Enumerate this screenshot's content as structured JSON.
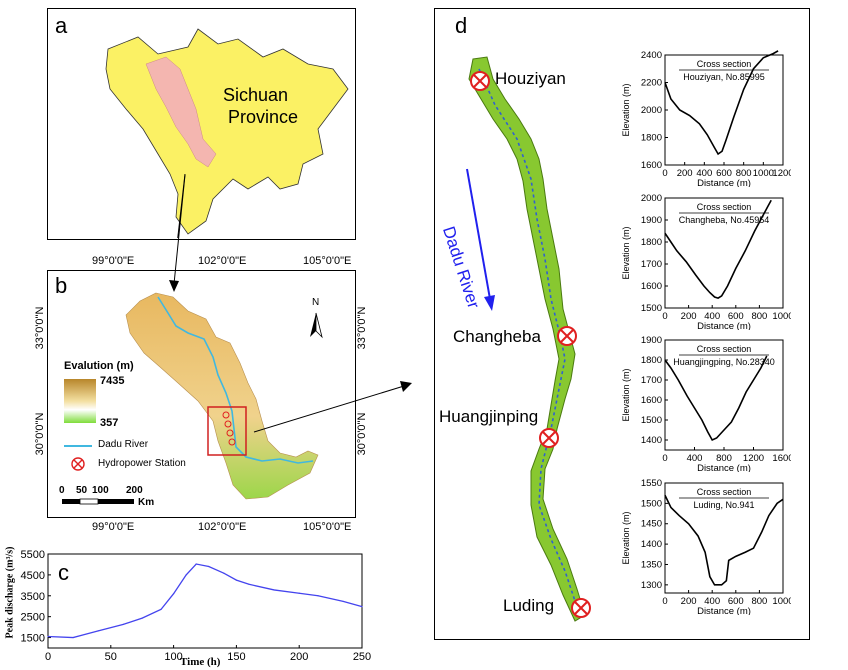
{
  "panel_a": {
    "label": "a",
    "region_name_line1": "Sichuan",
    "region_name_line2": "Province"
  },
  "panel_b": {
    "label": "b",
    "lon_ticks": [
      "99°0'0\"E",
      "102°0'0\"E",
      "105°0'0\"E"
    ],
    "lat_ticks": [
      "33°0'0\"N",
      "30°0'0\"N"
    ],
    "north_label": "N",
    "legend": {
      "title": "Evalution (m)",
      "max": "7435",
      "min": "357",
      "river": "Dadu River",
      "station": "Hydropower Station"
    },
    "scale": {
      "ticks": [
        "0",
        "50",
        "100",
        "200"
      ],
      "unit": "Km"
    },
    "colors": {
      "elev_high": "#b8862a",
      "elev_mid": "#f3dfa0",
      "elev_low": "#7fdc3a",
      "river": "#40b8e0",
      "station": "#e02020"
    }
  },
  "panel_c": {
    "label": "c",
    "chart_data": {
      "type": "line",
      "xlabel": "Time (h)",
      "ylabel": "Peak discharge (m³/s)",
      "xlim": [
        0,
        250
      ],
      "ylim": [
        1000,
        5500
      ],
      "x_ticks": [
        "0",
        "50",
        "100",
        "150",
        "200",
        "250"
      ],
      "y_ticks": [
        "1500",
        "2500",
        "3500",
        "4500",
        "5500"
      ],
      "x": [
        0,
        20,
        40,
        60,
        75,
        90,
        100,
        110,
        118,
        128,
        140,
        150,
        160,
        180,
        200,
        215,
        235,
        250
      ],
      "y": [
        1550,
        1500,
        1820,
        2130,
        2430,
        2850,
        3600,
        4500,
        5020,
        4900,
        4580,
        4250,
        4050,
        3780,
        3620,
        3500,
        3230,
        2980
      ],
      "color": "#4444ee"
    }
  },
  "panel_d": {
    "label": "d",
    "river_label": "Dadu River",
    "stations": [
      "Houziyan",
      "Changheba",
      "Huangjinping",
      "Luding"
    ],
    "cross_sections": [
      {
        "type": "line",
        "title": "Cross section",
        "subtitle": "Houziyan, No.85995",
        "xlabel": "Distance (m)",
        "ylabel": "Elevation (m)",
        "xlim": [
          0,
          1200
        ],
        "ylim": [
          1600,
          2400
        ],
        "x_ticks": [
          "0",
          "200",
          "400",
          "600",
          "800",
          "1000",
          "1200"
        ],
        "y_ticks": [
          "1600",
          "1800",
          "2000",
          "2200",
          "2400"
        ],
        "x": [
          0,
          60,
          150,
          250,
          350,
          430,
          500,
          540,
          580,
          620,
          700,
          800,
          900,
          1000,
          1100,
          1150
        ],
        "y": [
          2200,
          2080,
          2000,
          1960,
          1900,
          1820,
          1730,
          1680,
          1700,
          1780,
          1950,
          2150,
          2300,
          2380,
          2410,
          2430
        ]
      },
      {
        "type": "line",
        "title": "Cross section",
        "subtitle": "Changheba, No.45954",
        "xlabel": "Distance (m)",
        "ylabel": "Elevation (m)",
        "xlim": [
          0,
          1000
        ],
        "ylim": [
          1500,
          2000
        ],
        "x_ticks": [
          "0",
          "200",
          "400",
          "600",
          "800",
          "1000"
        ],
        "y_ticks": [
          "1500",
          "1600",
          "1700",
          "1800",
          "1900",
          "2000"
        ],
        "x": [
          0,
          50,
          100,
          180,
          260,
          330,
          380,
          420,
          450,
          480,
          530,
          600,
          680,
          760,
          820,
          870,
          900
        ],
        "y": [
          1840,
          1800,
          1760,
          1710,
          1650,
          1600,
          1570,
          1550,
          1545,
          1555,
          1600,
          1680,
          1760,
          1850,
          1910,
          1960,
          1990
        ]
      },
      {
        "type": "line",
        "title": "Cross section",
        "subtitle": "Huangjingping, No.28340",
        "xlabel": "Distance (m)",
        "ylabel": "Elevation (m)",
        "xlim": [
          0,
          1600
        ],
        "ylim": [
          1350,
          1900
        ],
        "x_ticks": [
          "0",
          "400",
          "800",
          "1200",
          "1600"
        ],
        "y_ticks": [
          "1400",
          "1500",
          "1600",
          "1700",
          "1800",
          "1900"
        ],
        "x": [
          0,
          80,
          180,
          300,
          400,
          500,
          580,
          640,
          700,
          800,
          900,
          1000,
          1100,
          1200,
          1300,
          1380
        ],
        "y": [
          1800,
          1760,
          1700,
          1620,
          1560,
          1500,
          1440,
          1400,
          1410,
          1450,
          1490,
          1560,
          1640,
          1700,
          1760,
          1820
        ]
      },
      {
        "type": "line",
        "title": "Cross section",
        "subtitle": "Luding, No.941",
        "xlabel": "Distance (m)",
        "ylabel": "Elevation (m)",
        "xlim": [
          0,
          1000
        ],
        "ylim": [
          1280,
          1550
        ],
        "x_ticks": [
          "0",
          "200",
          "400",
          "600",
          "800",
          "1000"
        ],
        "y_ticks": [
          "1300",
          "1350",
          "1400",
          "1450",
          "1500",
          "1550"
        ],
        "x": [
          0,
          50,
          120,
          200,
          280,
          340,
          380,
          420,
          480,
          520,
          540,
          600,
          680,
          750,
          820,
          880,
          950,
          1000
        ],
        "y": [
          1520,
          1490,
          1470,
          1450,
          1420,
          1380,
          1320,
          1300,
          1300,
          1310,
          1360,
          1370,
          1380,
          1390,
          1430,
          1470,
          1500,
          1510
        ]
      }
    ]
  }
}
